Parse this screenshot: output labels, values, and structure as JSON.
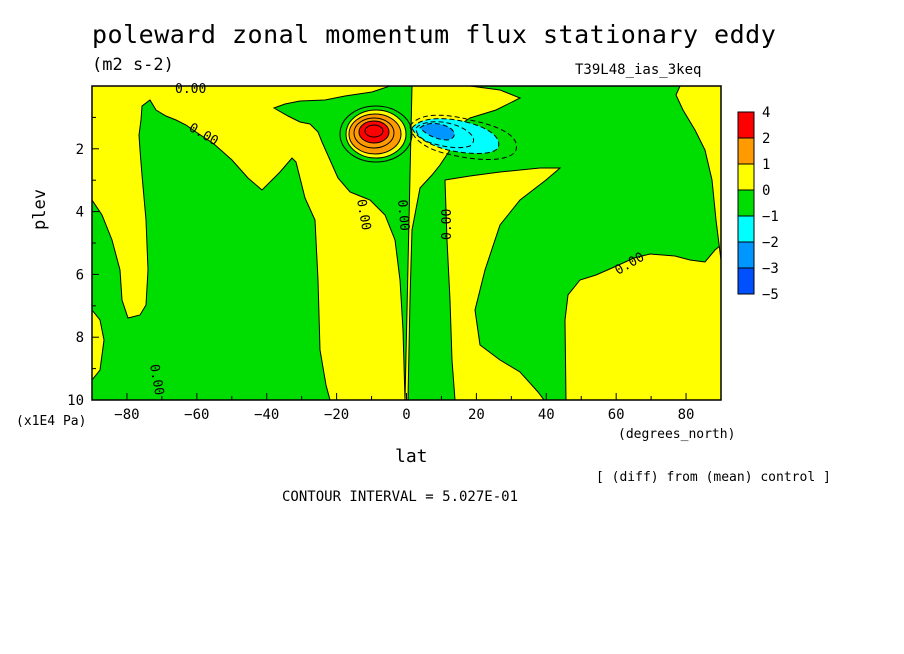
{
  "chart_data": {
    "type": "contour",
    "title": "poleward zonal momentum flux stationary eddy",
    "units": "(m2 s-2)",
    "run_label": "T39L48_ias_3keq",
    "xlabel": "lat",
    "x_units": "(degrees_north)",
    "ylabel": "plev",
    "y_multiplier": "(x1E4 Pa)",
    "xlim": [
      -90,
      90
    ],
    "ylim": [
      10,
      0
    ],
    "x_ticks": [
      -80,
      -60,
      -40,
      -20,
      0,
      20,
      40,
      60,
      80
    ],
    "y_ticks": [
      2,
      4,
      6,
      8,
      10
    ],
    "contour_labels": [
      "0.00"
    ],
    "colorbar": {
      "labels": [
        "4",
        "2",
        "1",
        "0",
        "−1",
        "−2",
        "−3",
        "−5"
      ],
      "colors": [
        "#ff0000",
        "#ff9b00",
        "#ffff00",
        "#00dd00",
        "#00ffff",
        "#0096ff",
        "#0050ff"
      ]
    },
    "diff_note": "[ (diff) from (mean) control ]",
    "contour_interval": "CONTOUR INTERVAL = 5.027E-01"
  }
}
